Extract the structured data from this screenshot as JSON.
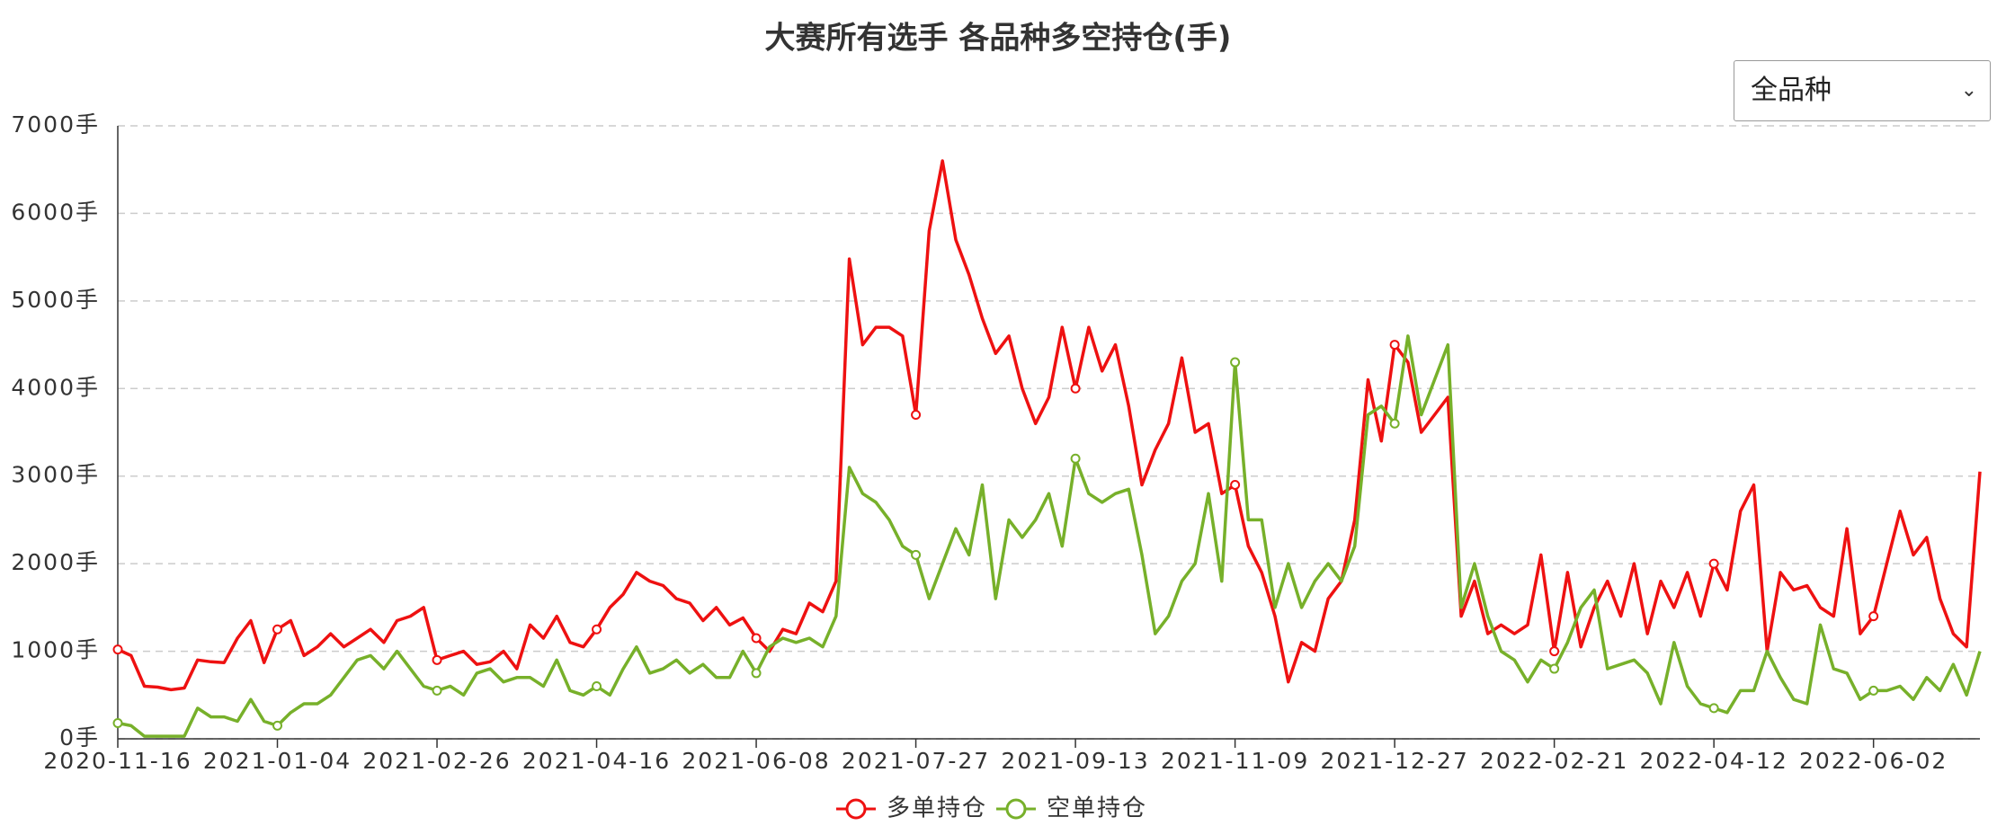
{
  "selector": "全品种",
  "chart_data": {
    "type": "line",
    "title": "大赛所有选手 各品种多空持仓(手)",
    "categories": [
      "2020-11-16",
      null,
      null,
      null,
      null,
      null,
      null,
      null,
      null,
      null,
      null,
      null,
      "2021-01-04",
      null,
      null,
      null,
      null,
      null,
      null,
      null,
      null,
      null,
      null,
      null,
      "2021-02-26",
      null,
      null,
      null,
      null,
      null,
      null,
      null,
      null,
      null,
      null,
      null,
      "2021-04-16",
      null,
      null,
      null,
      null,
      null,
      null,
      null,
      null,
      null,
      null,
      null,
      "2021-06-08",
      null,
      null,
      null,
      null,
      null,
      null,
      null,
      null,
      null,
      null,
      null,
      "2021-07-27",
      null,
      null,
      null,
      null,
      null,
      null,
      null,
      null,
      null,
      null,
      null,
      "2021-09-13",
      null,
      null,
      null,
      null,
      null,
      null,
      null,
      null,
      null,
      null,
      null,
      "2021-11-09",
      null,
      null,
      null,
      null,
      null,
      null,
      null,
      null,
      null,
      null,
      null,
      "2021-12-27",
      null,
      null,
      null,
      null,
      null,
      null,
      null,
      null,
      null,
      null,
      null,
      "2022-02-21",
      null,
      null,
      null,
      null,
      null,
      null,
      null,
      null,
      null,
      null,
      null,
      "2022-04-12",
      null,
      null,
      null,
      null,
      null,
      null,
      null,
      null,
      null,
      null,
      null,
      "2022-06-02",
      null,
      null,
      null,
      null,
      null,
      null,
      null,
      null
    ],
    "series": [
      {
        "name": "多单持仓",
        "color": "#ee1111",
        "values": [
          1020,
          950,
          600,
          590,
          560,
          580,
          900,
          880,
          870,
          1150,
          1350,
          870,
          1250,
          1350,
          950,
          1050,
          1200,
          1050,
          1150,
          1250,
          1100,
          1350,
          1400,
          1500,
          900,
          950,
          1000,
          850,
          880,
          1000,
          800,
          1300,
          1150,
          1400,
          1100,
          1050,
          1250,
          1500,
          1650,
          1900,
          1800,
          1750,
          1600,
          1550,
          1350,
          1500,
          1300,
          1380,
          1150,
          1000,
          1250,
          1200,
          1550,
          1450,
          1800,
          5480,
          4500,
          4700,
          4700,
          4600,
          3700,
          5800,
          6600,
          5700,
          5300,
          4800,
          4400,
          4600,
          4000,
          3600,
          3900,
          4700,
          4000,
          4700,
          4200,
          4500,
          3800,
          2900,
          3300,
          3600,
          4350,
          3500,
          3600,
          2800,
          2900,
          2200,
          1900,
          1400,
          650,
          1100,
          1000,
          1600,
          1800,
          2500,
          4100,
          3400,
          4500,
          4300,
          3500,
          3700,
          3900,
          1400,
          1800,
          1200,
          1300,
          1200,
          1300,
          2100,
          1000,
          1900,
          1050,
          1500,
          1800,
          1400,
          2000,
          1200,
          1800,
          1500,
          1900,
          1400,
          2000,
          1700,
          2600,
          2900,
          1000,
          1900,
          1700,
          1750,
          1500,
          1400,
          2400,
          1200,
          1400,
          2000,
          2600,
          2100,
          2300,
          1600,
          1200,
          1050,
          3050
        ]
      },
      {
        "name": "空单持仓",
        "color": "#77b02a",
        "values": [
          180,
          150,
          30,
          30,
          30,
          30,
          350,
          250,
          250,
          200,
          450,
          200,
          150,
          300,
          400,
          400,
          500,
          700,
          900,
          950,
          800,
          1000,
          800,
          600,
          550,
          600,
          500,
          750,
          800,
          650,
          700,
          700,
          600,
          900,
          550,
          500,
          600,
          500,
          800,
          1050,
          750,
          800,
          900,
          750,
          850,
          700,
          700,
          1000,
          750,
          1050,
          1150,
          1100,
          1150,
          1050,
          1400,
          3100,
          2800,
          2700,
          2500,
          2200,
          2100,
          1600,
          2000,
          2400,
          2100,
          2900,
          1600,
          2500,
          2300,
          2500,
          2800,
          2200,
          3200,
          2800,
          2700,
          2800,
          2850,
          2100,
          1200,
          1400,
          1800,
          2000,
          2800,
          1800,
          4300,
          2500,
          2500,
          1500,
          2000,
          1500,
          1800,
          2000,
          1800,
          2200,
          3700,
          3800,
          3600,
          4600,
          3700,
          4100,
          4500,
          1500,
          2000,
          1400,
          1000,
          900,
          650,
          900,
          800,
          1100,
          1500,
          1700,
          800,
          850,
          900,
          750,
          400,
          1100,
          600,
          400,
          350,
          300,
          550,
          550,
          1000,
          700,
          450,
          400,
          1300,
          800,
          750,
          450,
          550,
          550,
          600,
          450,
          700,
          550,
          850,
          500,
          1000
        ]
      }
    ],
    "ylim": [
      0,
      7000
    ],
    "yticks": [
      {
        "value": 0,
        "label": "0手"
      },
      {
        "value": 1000,
        "label": "1000手"
      },
      {
        "value": 2000,
        "label": "2000手"
      },
      {
        "value": 3000,
        "label": "3000手"
      },
      {
        "value": 4000,
        "label": "4000手"
      },
      {
        "value": 5000,
        "label": "5000手"
      },
      {
        "value": 6000,
        "label": "6000手"
      },
      {
        "value": 7000,
        "label": "7000手"
      }
    ],
    "grid": true
  }
}
